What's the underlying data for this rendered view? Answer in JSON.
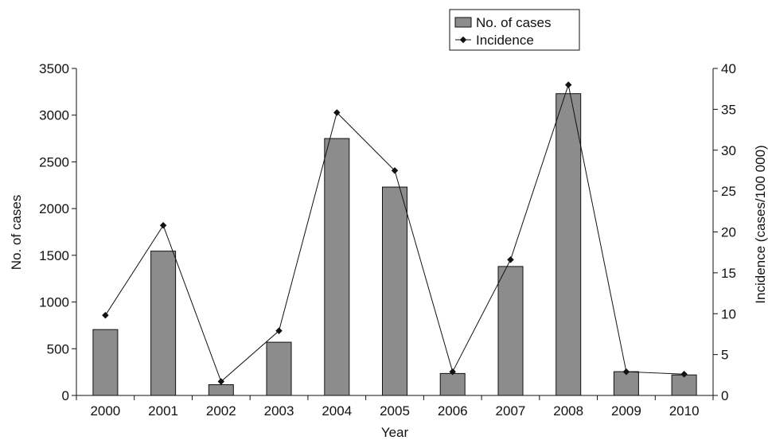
{
  "chart_data": {
    "type": "bar",
    "categories": [
      "2000",
      "2001",
      "2002",
      "2003",
      "2004",
      "2005",
      "2006",
      "2007",
      "2008",
      "2009",
      "2010"
    ],
    "series": [
      {
        "name": "No. of cases",
        "type": "bar",
        "axis": "left",
        "color": "#8c8c8c",
        "values": [
          705,
          1545,
          115,
          570,
          2750,
          2230,
          235,
          1380,
          3230,
          255,
          220
        ]
      },
      {
        "name": "Incidence",
        "type": "line",
        "axis": "right",
        "color": "#111111",
        "values": [
          9.8,
          20.8,
          1.7,
          7.9,
          34.6,
          27.5,
          2.9,
          16.6,
          38.0,
          2.9,
          2.6
        ]
      }
    ],
    "xlabel": "Year",
    "ylabel": "No. of cases",
    "y2label": "Incidence (cases/100 000)",
    "ylim": [
      0,
      3500
    ],
    "y2lim": [
      0,
      40
    ],
    "yticks": [
      "0",
      "500",
      "1000",
      "1500",
      "2000",
      "2500",
      "3000",
      "3500"
    ],
    "y2ticks": [
      "0",
      "5",
      "10",
      "15",
      "20",
      "25",
      "30",
      "35",
      "40"
    ],
    "grid": false,
    "legend": "top-right"
  }
}
